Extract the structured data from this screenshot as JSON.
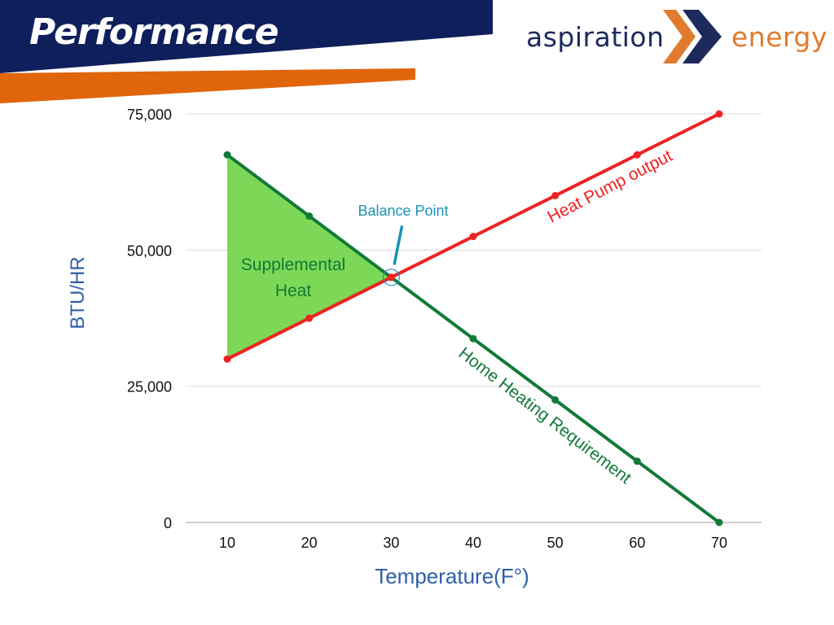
{
  "header": {
    "title": "Performance",
    "logo": {
      "word_left": "aspiration",
      "word_right": "energy",
      "mark": "double-chevron-icon"
    }
  },
  "colors": {
    "navy": "#0e1f5b",
    "orange": "#e0650b",
    "red_series": "#ee2222",
    "green_series": "#117a38",
    "fill": "#7dd857",
    "axis_label": "#2e5fa8",
    "balance_label": "#1a93b8"
  },
  "chart_data": {
    "type": "line",
    "xlabel": "Temperature(F°)",
    "ylabel": "BTU/HR",
    "x": [
      10,
      20,
      30,
      40,
      50,
      60,
      70
    ],
    "xlim": [
      5,
      70.5
    ],
    "ylim": [
      0,
      75000
    ],
    "yticks": [
      0,
      25000,
      50000,
      75000
    ],
    "ytick_labels": [
      "0",
      "25,000",
      "50,000",
      "75,000"
    ],
    "grid": true,
    "series": [
      {
        "name": "Heat Pump output",
        "color": "#ee2222",
        "values": [
          30000,
          37500,
          45000,
          52500,
          60000,
          67500,
          75000
        ]
      },
      {
        "name": "Home Heating Requirement",
        "color": "#117a38",
        "values": [
          67500,
          56250,
          45000,
          33750,
          22500,
          11250,
          0
        ]
      }
    ],
    "annotations": {
      "balance_point": {
        "label": "Balance Point",
        "x": 30,
        "y": 45000
      },
      "supplemental_heat": {
        "line1": "Supplemental",
        "line2": "Heat"
      }
    }
  }
}
